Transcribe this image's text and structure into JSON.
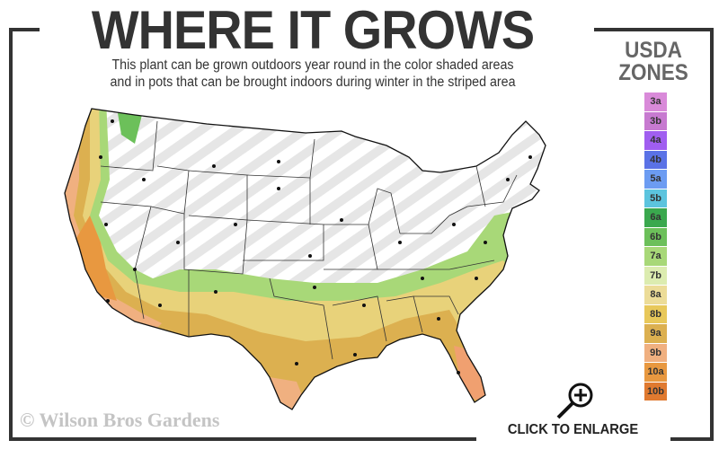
{
  "header": {
    "title": "WHERE IT GROWS",
    "subtitle_line1": "This plant can be grown outdoors year round in the color shaded areas",
    "subtitle_line2": "and in pots that can be brought indoors during winter in the striped area"
  },
  "legend": {
    "title_line1": "USDA",
    "title_line2": "ZONES",
    "zones": [
      {
        "label": "3a",
        "color": "#d98ad9"
      },
      {
        "label": "3b",
        "color": "#c77ad0"
      },
      {
        "label": "4a",
        "color": "#a05ef0"
      },
      {
        "label": "4b",
        "color": "#5a72e6"
      },
      {
        "label": "5a",
        "color": "#6c9cf2"
      },
      {
        "label": "5b",
        "color": "#5cc4de"
      },
      {
        "label": "6a",
        "color": "#3aa84e"
      },
      {
        "label": "6b",
        "color": "#6cc05a"
      },
      {
        "label": "7a",
        "color": "#a8d878"
      },
      {
        "label": "7b",
        "color": "#dcecb0"
      },
      {
        "label": "8a",
        "color": "#ecdc98"
      },
      {
        "label": "8b",
        "color": "#e8c85a"
      },
      {
        "label": "9a",
        "color": "#dcb050"
      },
      {
        "label": "9b",
        "color": "#f0b080"
      },
      {
        "label": "10a",
        "color": "#e89840"
      },
      {
        "label": "10b",
        "color": "#e07a30"
      }
    ]
  },
  "footer": {
    "copyright": "© Wilson Bros Gardens",
    "enlarge_label": "CLICK TO ENLARGE",
    "enlarge_icon": "magnifier-plus-icon"
  }
}
